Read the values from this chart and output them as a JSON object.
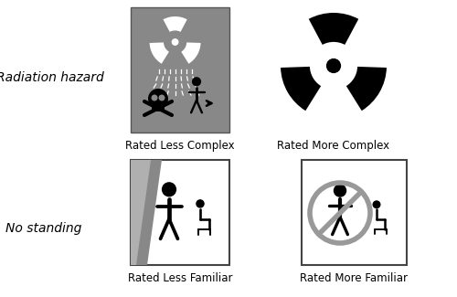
{
  "bg_color": "#ffffff",
  "label_radiation": "Radiation hazard",
  "label_no_standing": "No standing",
  "caption_less_complex": "Rated Less Complex",
  "caption_more_complex": "Rated More Complex",
  "caption_less_familiar": "Rated Less Familiar",
  "caption_more_familiar": "Rated More Familiar",
  "label_fontsize": 10,
  "caption_fontsize": 8.5,
  "gray_box_color": "#888888",
  "dark_black": "#111111",
  "border_color": "#444444",
  "gray_circle_color": "#999999",
  "shadow_light": "#b0b0b0",
  "shadow_dark": "#888888"
}
